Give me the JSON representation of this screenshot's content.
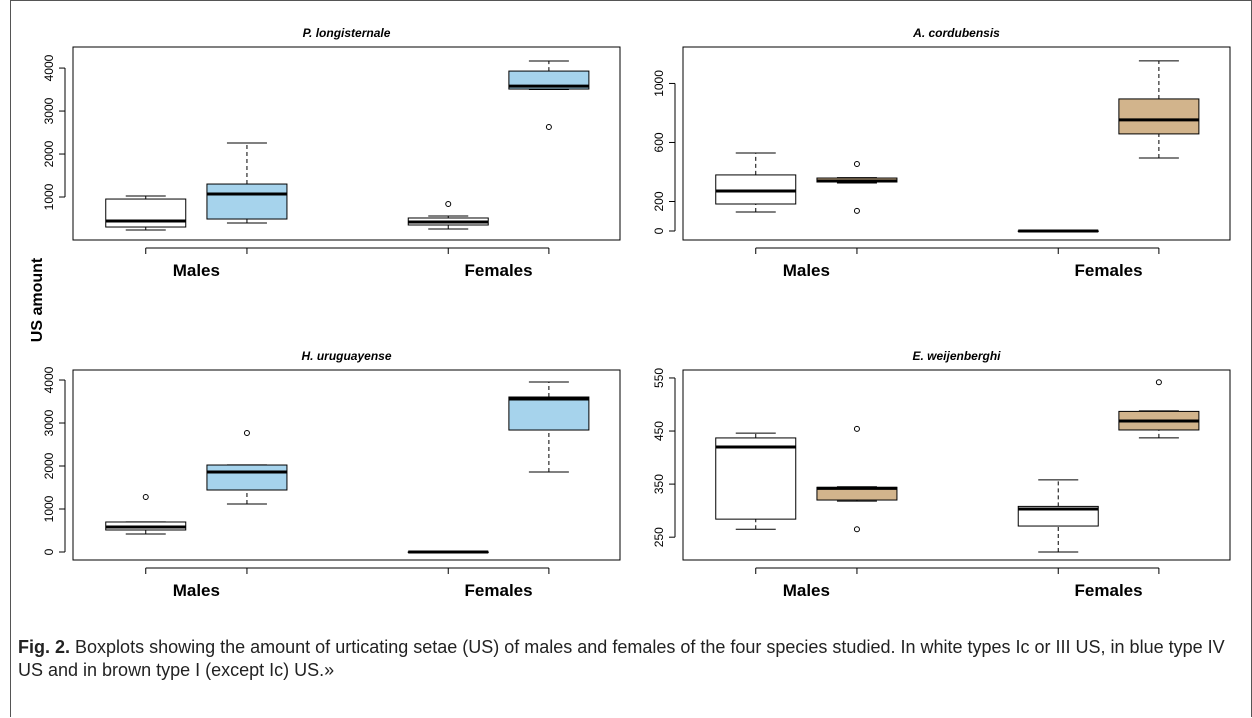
{
  "y_label": "US amount",
  "groups": [
    "Males",
    "Females"
  ],
  "caption": {
    "label": "Fig. 2.",
    "text": "Boxplots showing the amount of urticating setae (US) of males and females of the four species studied. In white types Ic or III US, in blue type IV US and in brown type I (except Ic) US.»"
  },
  "chart_data": [
    {
      "type": "box",
      "title": "P. longisternale",
      "categories": [
        null,
        null,
        null,
        null
      ],
      "ylim": [
        0,
        4490
      ],
      "yticks": [
        1000,
        2000,
        3000,
        4000
      ],
      "boxes": [
        {
          "color": "#ffffff",
          "whislo": 233,
          "q1": 302,
          "med": 442,
          "q3": 953,
          "whishi": 1023,
          "outliers": []
        },
        {
          "color": "#a6d3ec",
          "whislo": 395,
          "q1": 488,
          "med": 1070,
          "q3": 1302,
          "whishi": 2256,
          "outliers": []
        },
        {
          "color": "#ffffff",
          "whislo": 256,
          "q1": 349,
          "med": 419,
          "q3": 512,
          "whishi": 558,
          "outliers": [
            837
          ]
        },
        {
          "color": "#a6d3ec",
          "whislo": 3500,
          "q1": 3512,
          "med": 3581,
          "q3": 3930,
          "whishi": 4163,
          "outliers": [
            2628
          ]
        }
      ]
    },
    {
      "type": "box",
      "title": "A. cordubensis",
      "categories": [
        null,
        null,
        null,
        null
      ],
      "ylim": [
        -61,
        1247
      ],
      "yticks": [
        0,
        200,
        600,
        1000
      ],
      "boxes": [
        {
          "color": "#ffffff",
          "whislo": 129,
          "q1": 183,
          "med": 271,
          "q3": 380,
          "whishi": 529,
          "outliers": []
        },
        {
          "color": "#d2b48c",
          "whislo": 325,
          "q1": 332,
          "med": 339,
          "q3": 359,
          "whishi": 362,
          "outliers": [
            136,
            454
          ]
        },
        {
          "color": "#ffffff",
          "whislo": 0,
          "q1": 0,
          "med": 0,
          "q3": 0,
          "whishi": 0,
          "outliers": []
        },
        {
          "color": "#d2b48c",
          "whislo": 495,
          "q1": 658,
          "med": 753,
          "q3": 895,
          "whishi": 1153,
          "outliers": []
        }
      ]
    },
    {
      "type": "box",
      "title": "H. uruguayense",
      "categories": [
        null,
        null,
        null,
        null
      ],
      "ylim": [
        -186,
        4233
      ],
      "yticks": [
        0,
        1000,
        2000,
        3000,
        4000
      ],
      "boxes": [
        {
          "color": "#ffffff",
          "whislo": 419,
          "q1": 512,
          "med": 581,
          "q3": 698,
          "whishi": 700,
          "outliers": [
            1279
          ]
        },
        {
          "color": "#a6d3ec",
          "whislo": 1116,
          "q1": 1442,
          "med": 1860,
          "q3": 2023,
          "whishi": 2025,
          "outliers": [
            2767
          ]
        },
        {
          "color": "#ffffff",
          "whislo": 0,
          "q1": 0,
          "med": 0,
          "q3": 0,
          "whishi": 0,
          "outliers": []
        },
        {
          "color": "#a6d3ec",
          "whislo": 1860,
          "q1": 2837,
          "med": 3558,
          "q3": 3605,
          "whishi": 3953,
          "outliers": []
        }
      ]
    },
    {
      "type": "box",
      "title": "E. weijenberghi",
      "categories": [
        null,
        null,
        null,
        null
      ],
      "ylim": [
        207,
        565
      ],
      "yticks": [
        250,
        350,
        450,
        550
      ],
      "boxes": [
        {
          "color": "#ffffff",
          "whislo": 265,
          "q1": 284,
          "med": 420,
          "q3": 437,
          "whishi": 446,
          "outliers": []
        },
        {
          "color": "#d2b48c",
          "whislo": 318,
          "q1": 320,
          "med": 342,
          "q3": 344,
          "whishi": 345,
          "outliers": [
            265,
            454
          ]
        },
        {
          "color": "#ffffff",
          "whislo": 222,
          "q1": 271,
          "med": 303,
          "q3": 308,
          "whishi": 358,
          "outliers": []
        },
        {
          "color": "#d2b48c",
          "whislo": 437,
          "q1": 452,
          "med": 469,
          "q3": 487,
          "whishi": 488,
          "outliers": [
            542
          ]
        }
      ]
    }
  ]
}
